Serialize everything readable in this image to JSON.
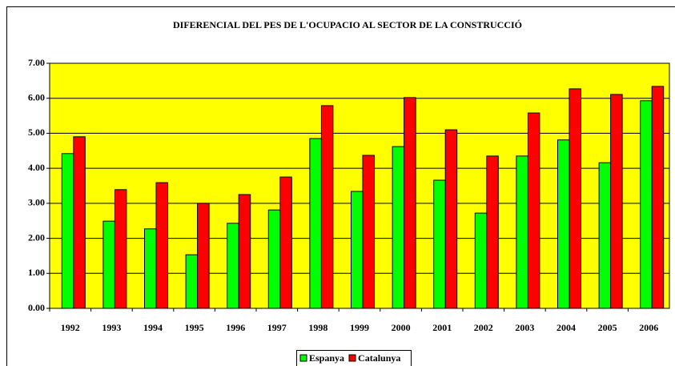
{
  "chart_data": {
    "type": "bar",
    "title": "DIFERENCIAL DEL PES DE L'OCUPACIO AL SECTOR DE LA CONSTRUCCIÓ",
    "categories": [
      "1992",
      "1993",
      "1994",
      "1995",
      "1996",
      "1997",
      "1998",
      "1999",
      "2000",
      "2001",
      "2002",
      "2003",
      "2004",
      "2005",
      "2006"
    ],
    "series": [
      {
        "name": "Espanya",
        "color": "#00ff00",
        "values": [
          4.42,
          2.49,
          2.27,
          1.53,
          2.43,
          2.81,
          4.85,
          3.34,
          4.62,
          3.66,
          2.72,
          4.35,
          4.81,
          4.16,
          5.93
        ]
      },
      {
        "name": "Catalunya",
        "color": "#ff0000",
        "values": [
          4.9,
          3.39,
          3.59,
          3.0,
          3.25,
          3.75,
          5.79,
          4.37,
          6.02,
          5.1,
          4.35,
          5.58,
          6.27,
          6.11,
          6.34
        ]
      }
    ],
    "ylim": [
      0,
      7
    ],
    "yticks": [
      {
        "value": 0,
        "label": "0.00"
      },
      {
        "value": 1,
        "label": "1.00"
      },
      {
        "value": 2,
        "label": "2.00"
      },
      {
        "value": 3,
        "label": "3.00"
      },
      {
        "value": 4,
        "label": "4.00"
      },
      {
        "value": 5,
        "label": "5.00"
      },
      {
        "value": 6,
        "label": "6.00"
      },
      {
        "value": 7,
        "label": "7.00"
      }
    ],
    "grid": true,
    "plot_background": "#ffff00",
    "legend": "bottom"
  }
}
